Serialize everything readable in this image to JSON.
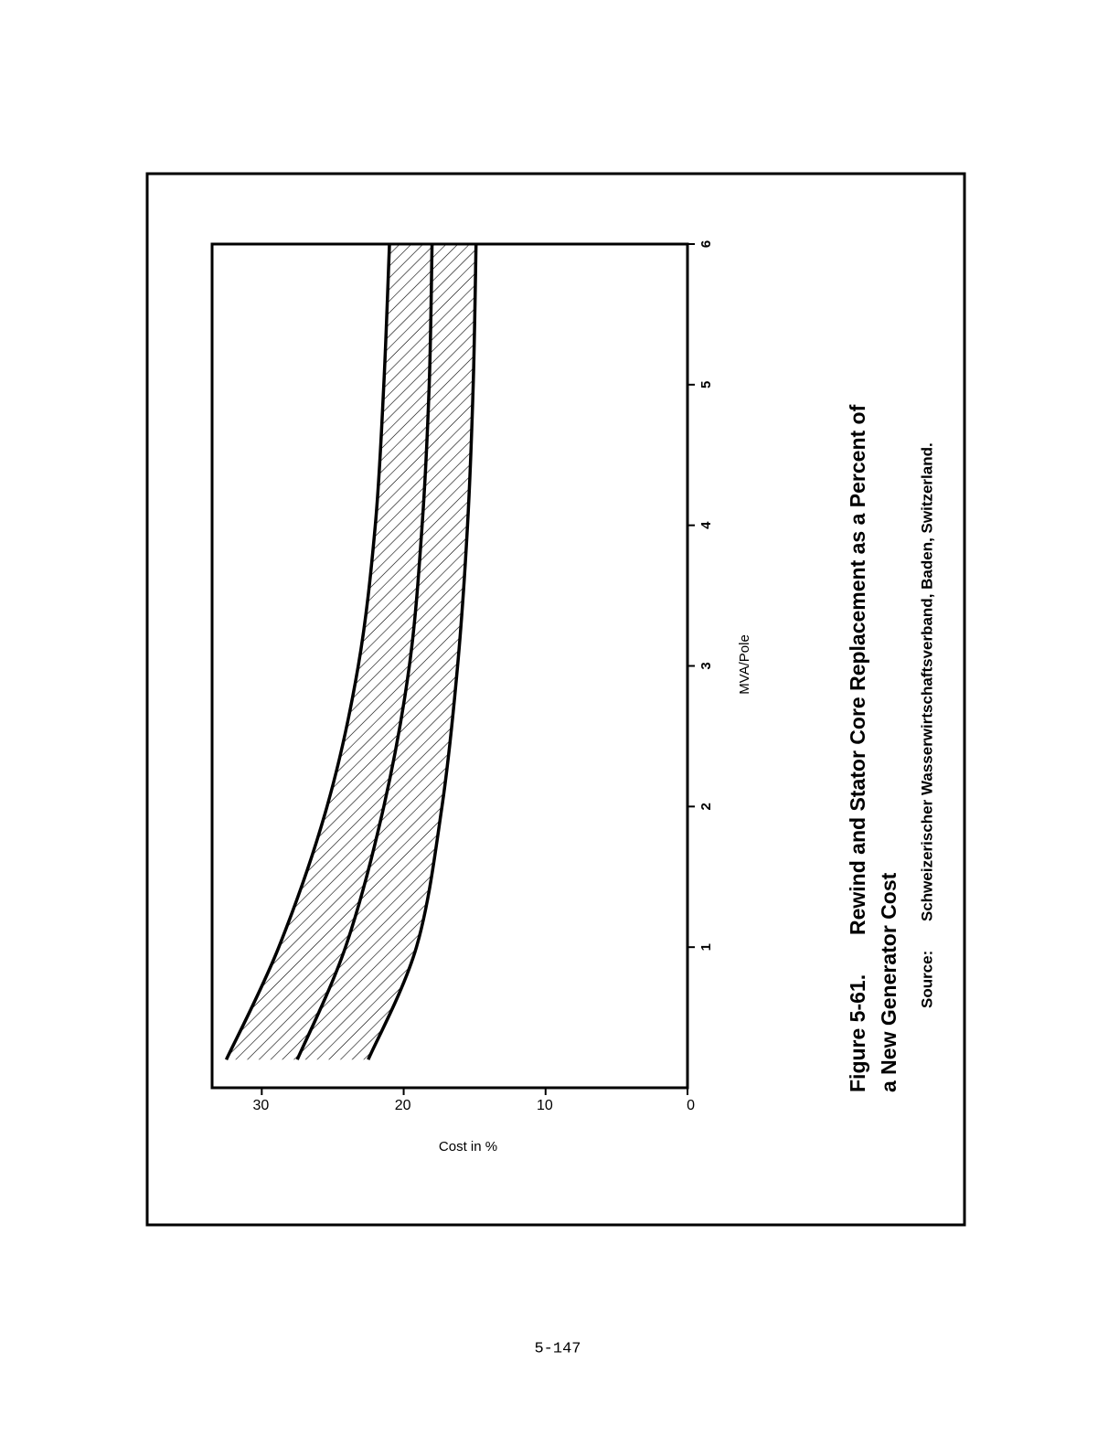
{
  "chart_data": {
    "type": "line",
    "figure_label": "Figure 5-61.",
    "title": [
      "Rewind and Stator Core Replacement as a Percent of",
      "a New Generator Cost"
    ],
    "source_label": "Source:",
    "source": "Schweizerischer Wasserwirtschaftsverband, Baden, Switzerland.",
    "x_label": "MVA/Pole",
    "y_label": "Cost in %",
    "x": [
      0.2,
      1,
      2,
      3,
      4,
      5,
      6
    ],
    "series": [
      {
        "color": "#000000",
        "values": [
          32.5,
          28.8,
          25.4,
          23.2,
          22.0,
          21.4,
          21.0
        ]
      },
      {
        "color": "#000000",
        "values": [
          27.5,
          24.1,
          21.4,
          19.6,
          18.7,
          18.2,
          18.0
        ]
      },
      {
        "color": "#000000",
        "values": [
          22.5,
          19.1,
          17.3,
          16.2,
          15.5,
          15.1,
          14.9
        ]
      }
    ],
    "fill_between_outer": true,
    "xlim": [
      0,
      6
    ],
    "xticks": [
      1,
      2,
      3,
      4,
      5,
      6
    ],
    "ylim": [
      0,
      33.5
    ],
    "yticks": [
      0,
      10,
      20,
      30
    ]
  },
  "page_number": "5-147"
}
